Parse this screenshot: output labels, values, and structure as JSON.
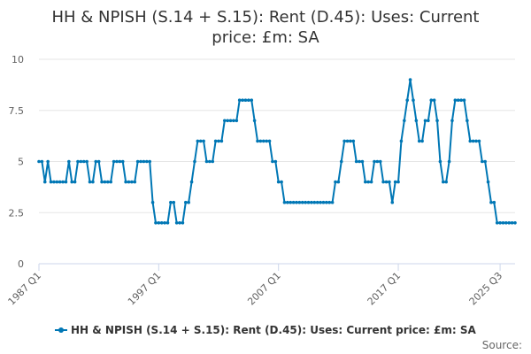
{
  "chart_data": {
    "type": "line",
    "title_lines": [
      "HH & NPISH (S.14 + S.15): Rent (D.45): Uses: Current",
      "price: £m: SA"
    ],
    "source_label": "Source:",
    "x_tick_labels": [
      "1987 Q1",
      "1997 Q1",
      "2007 Q1",
      "2017 Q1",
      "2025 Q3"
    ],
    "x_tick_indices": [
      0,
      40,
      80,
      120,
      154
    ],
    "y_ticks": [
      0,
      2.5,
      5,
      7.5,
      10
    ],
    "y_tick_labels": [
      "0",
      "2.5",
      "5",
      "7.5",
      "10"
    ],
    "ylim": [
      0,
      10
    ],
    "grid": true,
    "legend_position": "bottom",
    "colors": {
      "series": "#0077b5",
      "grid": "#e6e6e6",
      "axis": "#ccd6eb"
    },
    "series": [
      {
        "name": "HH & NPISH (S.14 + S.15): Rent (D.45): Uses: Current price: £m: SA",
        "values": [
          5,
          5,
          4,
          5,
          4,
          4,
          4,
          4,
          4,
          4,
          5,
          4,
          4,
          5,
          5,
          5,
          5,
          4,
          4,
          5,
          5,
          4,
          4,
          4,
          4,
          5,
          5,
          5,
          5,
          4,
          4,
          4,
          4,
          5,
          5,
          5,
          5,
          5,
          3,
          2,
          2,
          2,
          2,
          2,
          3,
          3,
          2,
          2,
          2,
          3,
          3,
          4,
          5,
          6,
          6,
          6,
          5,
          5,
          5,
          6,
          6,
          6,
          7,
          7,
          7,
          7,
          7,
          8,
          8,
          8,
          8,
          8,
          7,
          6,
          6,
          6,
          6,
          6,
          5,
          5,
          4,
          4,
          3,
          3,
          3,
          3,
          3,
          3,
          3,
          3,
          3,
          3,
          3,
          3,
          3,
          3,
          3,
          3,
          3,
          4,
          4,
          5,
          6,
          6,
          6,
          6,
          5,
          5,
          5,
          4,
          4,
          4,
          5,
          5,
          5,
          4,
          4,
          4,
          3,
          4,
          4,
          6,
          7,
          8,
          9,
          8,
          7,
          6,
          6,
          7,
          7,
          8,
          8,
          7,
          5,
          4,
          4,
          5,
          7,
          8,
          8,
          8,
          8,
          7,
          6,
          6,
          6,
          6,
          5,
          5,
          4,
          3,
          3,
          2,
          2,
          2,
          2,
          2,
          2,
          2
        ]
      }
    ]
  }
}
